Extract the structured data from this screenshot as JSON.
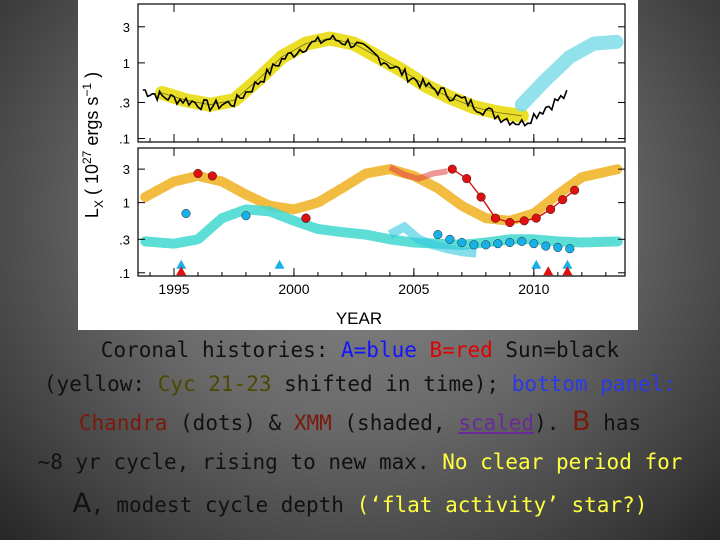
{
  "chart_data": {
    "type": "scatter",
    "ylabel": "L_X ( 10^27 ergs s^-1 )",
    "xlabel": "YEAR",
    "x_ticks": [
      "1995",
      "2000",
      "2005",
      "2010"
    ],
    "xlim": [
      1993.5,
      2013.8
    ],
    "y_ticks": [
      "3",
      "1",
      ".3",
      ".1"
    ],
    "ylim": [
      0.09,
      6
    ],
    "panels": [
      {
        "name": "top",
        "series": [
          {
            "name": "Sun",
            "color": "#000000",
            "x": [
              1993.7,
              1994.5,
              1995.5,
              1996.5,
              1997.5,
              1998.5,
              1999.5,
              2000.5,
              2001.5,
              2002.5,
              2003.5,
              2004.5,
              2005.5,
              2006.5,
              2007.5,
              2008.5,
              2009.5,
              2010.5,
              2011.5
            ],
            "y": [
              0.44,
              0.36,
              0.32,
              0.27,
              0.3,
              0.55,
              1.1,
              1.7,
              2.1,
              1.8,
              1.2,
              0.75,
              0.5,
              0.38,
              0.28,
              0.2,
              0.16,
              0.26,
              0.4
            ]
          },
          {
            "name": "Cyc 21-23 (yellow band)",
            "color": "#e8d800",
            "x": [
              1994.5,
              1995.5,
              1996.5,
              1997.5,
              1998.5,
              1999.5,
              2000.5,
              2001.5,
              2002.5,
              2003.5,
              2004.5,
              2005.5,
              2006.5,
              2007.5,
              2008.5,
              2009.5
            ],
            "y": [
              0.4,
              0.32,
              0.28,
              0.32,
              0.6,
              1.2,
              1.8,
              2.1,
              1.8,
              1.2,
              0.8,
              0.5,
              0.35,
              0.26,
              0.22,
              0.2
            ]
          },
          {
            "name": "projected cycle (cyan band)",
            "color": "#7fdde8",
            "x": [
              2009.5,
              2010.5,
              2011.5,
              2012.5,
              2013.5
            ],
            "y": [
              0.28,
              0.6,
              1.2,
              1.8,
              1.9
            ]
          }
        ]
      },
      {
        "name": "bottom",
        "series": [
          {
            "name": "A (Chandra dots)",
            "color": "#19b0e8",
            "x": [
              1995.5,
              1998.0,
              2000.5,
              2006.0,
              2006.5,
              2007.0,
              2007.5,
              2008.0,
              2008.5,
              2009.0,
              2009.5,
              2010.0,
              2010.5,
              2011.0,
              2011.5
            ],
            "y": [
              0.7,
              0.65,
              0.6,
              0.35,
              0.3,
              0.27,
              0.25,
              0.25,
              0.26,
              0.27,
              0.28,
              0.26,
              0.24,
              0.23,
              0.22
            ]
          },
          {
            "name": "B (Chandra dots)",
            "color": "#e01010",
            "x": [
              1996.0,
              1996.6,
              2000.5,
              2006.6,
              2007.2,
              2007.8,
              2008.4,
              2009.0,
              2009.6,
              2010.1,
              2010.7,
              2011.2,
              2011.7
            ],
            "y": [
              2.6,
              2.4,
              0.6,
              3.0,
              2.2,
              1.2,
              0.6,
              0.52,
              0.55,
              0.6,
              0.8,
              1.1,
              1.5
            ]
          },
          {
            "name": "A (XMM shaded)",
            "color": "#35c8e0",
            "x": [
              2004.0,
              2004.6,
              2005.2,
              2005.8,
              2006.4,
              2007.0,
              2007.6
            ],
            "y": [
              0.35,
              0.45,
              0.3,
              0.25,
              0.22,
              0.2,
              0.19
            ]
          },
          {
            "name": "B (XMM shaded)",
            "color": "#e04040",
            "x": [
              2004.0,
              2004.6,
              2005.2,
              2005.8,
              2006.4
            ],
            "y": [
              3.2,
              2.5,
              2.2,
              2.6,
              2.8
            ]
          },
          {
            "name": "A cycle (cyan dashed band)",
            "color": "#40d8d0",
            "x": [
              1993.8,
              1995.0,
              1996.0,
              1997.0,
              1998.0,
              1999.0,
              2000.0,
              2001.0,
              2002.0,
              2003.0,
              2004.0,
              2005.0,
              2006.0,
              2007.0,
              2008.0,
              2009.0,
              2010.0,
              2011.0,
              2012.0,
              2013.5
            ],
            "y": [
              0.28,
              0.26,
              0.3,
              0.6,
              0.8,
              0.75,
              0.55,
              0.42,
              0.38,
              0.35,
              0.3,
              0.27,
              0.26,
              0.25,
              0.27,
              0.3,
              0.3,
              0.28,
              0.27,
              0.28
            ]
          },
          {
            "name": "B cycle (yellow dashed band)",
            "color": "#f0b020",
            "x": [
              1993.8,
              1995.0,
              1996.0,
              1997.0,
              1998.0,
              1999.0,
              2000.0,
              2001.0,
              2002.0,
              2003.0,
              2004.0,
              2005.0,
              2006.0,
              2007.0,
              2008.0,
              2009.0,
              2010.0,
              2011.0,
              2012.0,
              2013.5
            ],
            "y": [
              1.2,
              2.0,
              2.4,
              2.0,
              1.3,
              0.9,
              0.8,
              1.0,
              1.6,
              2.6,
              3.0,
              2.4,
              1.6,
              0.9,
              0.6,
              0.55,
              0.7,
              1.3,
              2.3,
              3.0
            ]
          },
          {
            "name": "A upper limits (triangles)",
            "color": "#19b0e8",
            "x": [
              1995.3,
              1999.4,
              2010.1,
              2011.4
            ],
            "y": [
              0.13,
              0.13,
              0.13,
              0.13
            ]
          },
          {
            "name": "B upper limits (triangles)",
            "color": "#e01010",
            "x": [
              1995.3,
              2010.6,
              2011.4
            ],
            "y": [
              0.105,
              0.105,
              0.105
            ]
          }
        ]
      }
    ]
  },
  "caption": {
    "l1_a": "Coronal histories: ",
    "l1_b": "A=blue",
    "l1_c": "B=red",
    "l1_d": "Sun=black",
    "l2_a": "(yellow: ",
    "l2_b": "Cyc 21-23",
    "l2_c": " shifted in time); ",
    "l2_d": "bottom panel:",
    "l3_a": "Chandra",
    "l3_b": " (dots) & ",
    "l3_c": "XMM",
    "l3_d": " (shaded, ",
    "l3_e": "scaled",
    "l3_f": "). ",
    "l3_g": "B",
    "l3_h": " has",
    "l4_a": "~8 yr cycle,",
    "l4_b": " rising to new max. ",
    "l4_c": "No clear period for",
    "l5_a": "A",
    "l5_b": ", modest cycle depth ",
    "l5_c": "(‘flat activity’ star?)"
  }
}
